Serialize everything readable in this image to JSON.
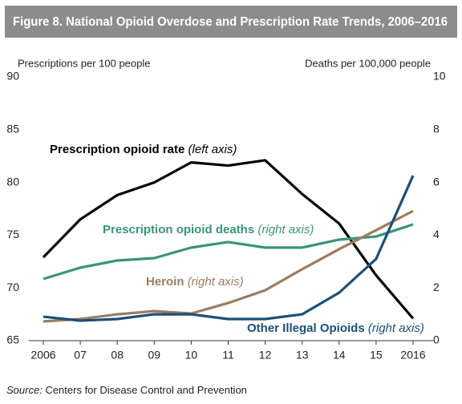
{
  "chart_data": {
    "type": "line",
    "title": "Figure 8. National Opioid Overdose and Prescription Rate Trends, 2006–2016",
    "y_label": "Prescriptions per 100 people",
    "y2_label": "Deaths per 100,000 people",
    "categories": [
      "2006",
      "07",
      "08",
      "09",
      "10",
      "11",
      "12",
      "13",
      "14",
      "15",
      "2016"
    ],
    "ylim": [
      65,
      90
    ],
    "yticks": [
      65,
      70,
      75,
      80,
      85,
      90
    ],
    "y2lim": [
      0,
      10
    ],
    "y2ticks": [
      0,
      2,
      4,
      6,
      8,
      10
    ],
    "series": [
      {
        "name": "Prescription opioid rate",
        "axis_note": "(left axis)",
        "color": "#000000",
        "axis": "y",
        "values": [
          72.9,
          76.5,
          78.8,
          80.0,
          81.9,
          81.6,
          82.1,
          78.9,
          76.1,
          71.2,
          67.1
        ]
      },
      {
        "name": "Prescription opioid deaths",
        "axis_note": "(right axis)",
        "color": "#3a9577",
        "axis": "y2",
        "values": [
          2.34,
          2.77,
          3.04,
          3.13,
          3.53,
          3.74,
          3.53,
          3.53,
          3.83,
          3.95,
          4.41
        ]
      },
      {
        "name": "Heroin",
        "axis_note": "(right axis)",
        "color": "#9c7c60",
        "axis": "y2",
        "values": [
          0.73,
          0.82,
          1.0,
          1.12,
          1.03,
          1.43,
          1.91,
          2.71,
          3.47,
          4.19,
          4.92
        ]
      },
      {
        "name": "Other Illegal Opioids",
        "axis_note": "(right axis)",
        "color": "#1c4f78",
        "axis": "y2",
        "values": [
          0.91,
          0.76,
          0.82,
          1.0,
          1.0,
          0.82,
          0.82,
          1.0,
          1.82,
          3.1,
          6.26
        ]
      }
    ],
    "source_label": "Source:",
    "source": "Centers for Disease Control and Prevention"
  }
}
